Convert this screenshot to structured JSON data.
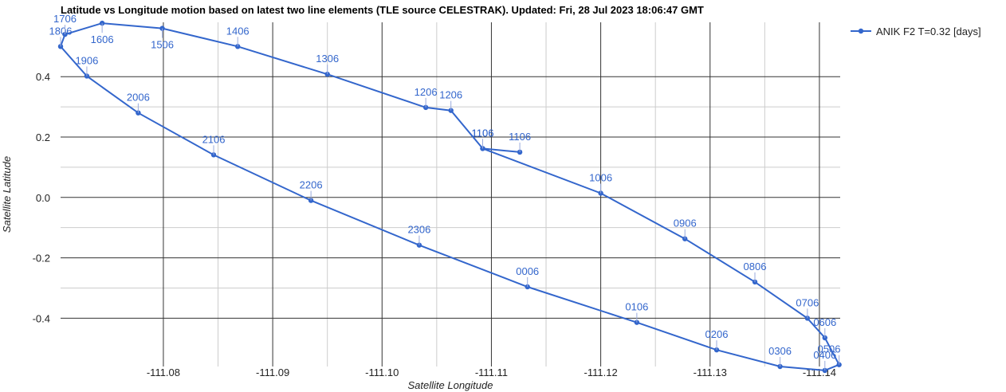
{
  "chart_data": {
    "type": "line",
    "title": "Latitude vs Longitude motion based on latest two line elements (TLE source CELESTRAK). Updated: Fri, 28 Jul 2023 18:06:47 GMT",
    "xlabel": "Satellite Longitude",
    "ylabel": "Satellite Latitude",
    "x_reversed": true,
    "xlim": [
      -111.0706,
      -111.1419
    ],
    "ylim": [
      -0.56,
      0.58
    ],
    "x_ticks": [
      -111.08,
      -111.09,
      -111.1,
      -111.11,
      -111.12,
      -111.13,
      -111.14
    ],
    "x_tick_labels": [
      "-111.08",
      "-111.09",
      "-111.10",
      "-111.11",
      "-111.12",
      "-111.13",
      "-111.14"
    ],
    "y_ticks": [
      0.4,
      0.2,
      0.0,
      -0.2,
      -0.4
    ],
    "y_tick_labels": [
      "0.4",
      "0.2",
      "0.0",
      "-0.2",
      "-0.4"
    ],
    "grid": true,
    "legend_position": "right",
    "color": "#3366cc",
    "series": [
      {
        "name": "ANIK F2 T=0.32 [days]",
        "points": [
          {
            "label": "1106",
            "x": -111.1126,
            "y": 0.15
          },
          {
            "label": "1106",
            "x": -111.1092,
            "y": 0.162
          },
          {
            "label": "1006",
            "x": -111.12,
            "y": 0.014
          },
          {
            "label": "0906",
            "x": -111.1277,
            "y": -0.137
          },
          {
            "label": "0806",
            "x": -111.1341,
            "y": -0.28
          },
          {
            "label": "0706",
            "x": -111.1389,
            "y": -0.4
          },
          {
            "label": "0606",
            "x": -111.1405,
            "y": -0.465
          },
          {
            "label": "0506",
            "x": -111.1418,
            "y": -0.554
          },
          {
            "label": "0406",
            "x": -111.1405,
            "y": -0.573
          },
          {
            "label": "0306",
            "x": -111.1364,
            "y": -0.56
          },
          {
            "label": "0206",
            "x": -111.1306,
            "y": -0.505
          },
          {
            "label": "0106",
            "x": -111.1233,
            "y": -0.414
          },
          {
            "label": "0006",
            "x": -111.1133,
            "y": -0.296
          },
          {
            "label": "2306",
            "x": -111.1034,
            "y": -0.158
          },
          {
            "label": "2206",
            "x": -111.0935,
            "y": -0.01
          },
          {
            "label": "2106",
            "x": -111.0846,
            "y": 0.141
          },
          {
            "label": "2006",
            "x": -111.0777,
            "y": 0.28
          },
          {
            "label": "1906",
            "x": -111.073,
            "y": 0.402
          },
          {
            "label": "1806",
            "x": -111.0706,
            "y": 0.5
          },
          {
            "label": "1706",
            "x": -111.071,
            "y": 0.54
          },
          {
            "label": "1606",
            "x": -111.0744,
            "y": 0.577
          },
          {
            "label": "1506",
            "x": -111.0799,
            "y": 0.56
          },
          {
            "label": "1406",
            "x": -111.0868,
            "y": 0.5
          },
          {
            "label": "1306",
            "x": -111.095,
            "y": 0.408
          },
          {
            "label": "1206",
            "x": -111.104,
            "y": 0.298
          },
          {
            "label": "1206",
            "x": -111.1063,
            "y": 0.288
          },
          {
            "label": "1106",
            "x": -111.1092,
            "y": 0.162
          }
        ]
      }
    ]
  }
}
